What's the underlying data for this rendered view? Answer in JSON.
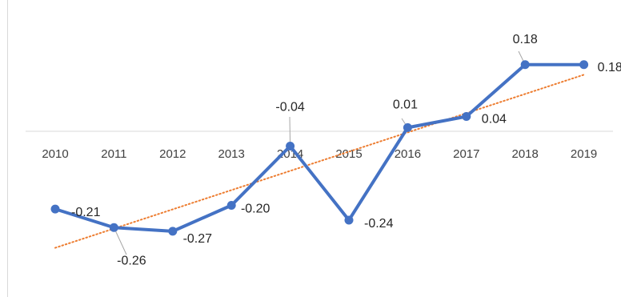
{
  "chart_data": {
    "type": "line",
    "categories": [
      "2010",
      "2011",
      "2012",
      "2013",
      "2014",
      "2015",
      "2016",
      "2017",
      "2018",
      "2019"
    ],
    "series": [
      {
        "values": [
          -0.21,
          -0.26,
          -0.27,
          -0.2,
          -0.04,
          -0.24,
          0.01,
          0.04,
          0.18,
          0.18
        ],
        "labels": [
          "-0.21",
          "-0.26",
          "-0.27",
          "-0.20",
          "-0.04",
          "-0.24",
          "0.01",
          "0.04",
          "0.18",
          "0.18"
        ],
        "color": "#4472C4"
      }
    ],
    "trendline": {
      "type": "linear",
      "style": "dotted",
      "color": "#ED7D31"
    },
    "title": "",
    "xlabel": "",
    "ylabel": "",
    "ylim": [
      -0.3,
      0.25
    ],
    "grid": false,
    "legend": "none"
  }
}
